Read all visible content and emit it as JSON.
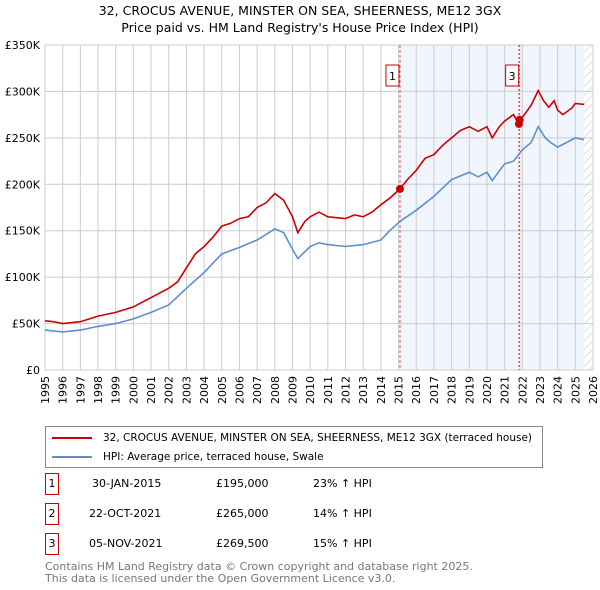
{
  "chart_data": {
    "type": "line",
    "title": "32, CROCUS AVENUE, MINSTER ON SEA, SHEERNESS, ME12 3GX",
    "subtitle": "Price paid vs. HM Land Registry's House Price Index (HPI)",
    "xlim": [
      1995,
      2026
    ],
    "ylim": [
      0,
      350000
    ],
    "x_ticks": [
      "1995",
      "1996",
      "1997",
      "1998",
      "1999",
      "2000",
      "2001",
      "2002",
      "2003",
      "2004",
      "2005",
      "2006",
      "2007",
      "2008",
      "2009",
      "2010",
      "2011",
      "2012",
      "2013",
      "2014",
      "2015",
      "2016",
      "2017",
      "2018",
      "2019",
      "2020",
      "2021",
      "2022",
      "2023",
      "2024",
      "2025",
      "2026"
    ],
    "y_ticks": [
      {
        "v": 0,
        "label": "£0"
      },
      {
        "v": 50000,
        "label": "£50K"
      },
      {
        "v": 100000,
        "label": "£100K"
      },
      {
        "v": 150000,
        "label": "£150K"
      },
      {
        "v": 200000,
        "label": "£200K"
      },
      {
        "v": 250000,
        "label": "£250K"
      },
      {
        "v": 300000,
        "label": "£300K"
      },
      {
        "v": 350000,
        "label": "£350K"
      }
    ],
    "grid": true,
    "shaded_from": 2015.08,
    "hatched_from": 2025.5,
    "series": [
      {
        "name": "32, CROCUS AVENUE, MINSTER ON SEA, SHEERNESS, ME12 3GX (terraced house)",
        "color": "#cc0000",
        "x": [
          1995,
          1995.5,
          1996,
          1997,
          1998,
          1999,
          2000,
          2000.5,
          2001,
          2002,
          2002.5,
          2003,
          2003.5,
          2004,
          2004.5,
          2005,
          2005.5,
          2006,
          2006.5,
          2007,
          2007.5,
          2008,
          2008.5,
          2009,
          2009.3,
          2009.7,
          2010,
          2010.5,
          2011,
          2012,
          2012.5,
          2013,
          2013.5,
          2014,
          2014.5,
          2015.08,
          2015.5,
          2016,
          2016.5,
          2017,
          2017.5,
          2018,
          2018.5,
          2019,
          2019.5,
          2020,
          2020.3,
          2020.7,
          2021,
          2021.5,
          2021.8,
          2022,
          2022.5,
          2022.9,
          2023.2,
          2023.5,
          2023.8,
          2024,
          2024.3,
          2024.8,
          2025,
          2025.5
        ],
        "y": [
          53000,
          52000,
          50000,
          52000,
          58000,
          62000,
          68000,
          73000,
          78000,
          88000,
          95000,
          110000,
          125000,
          133000,
          143000,
          155000,
          158000,
          163000,
          165000,
          175000,
          180000,
          190000,
          183000,
          165000,
          148000,
          160000,
          165000,
          170000,
          165000,
          163000,
          167000,
          165000,
          170000,
          178000,
          185000,
          195000,
          205000,
          215000,
          228000,
          232000,
          242000,
          250000,
          258000,
          262000,
          257000,
          262000,
          250000,
          262000,
          268000,
          275000,
          265000,
          272000,
          285000,
          301000,
          290000,
          283000,
          290000,
          280000,
          275000,
          282000,
          287000,
          286000
        ]
      },
      {
        "name": "HPI: Average price, terraced house, Swale",
        "color": "#5b8fd0",
        "x": [
          1995,
          1996,
          1997,
          1998,
          1999,
          2000,
          2001,
          2002,
          2003,
          2004,
          2004.5,
          2005,
          2006,
          2007,
          2008,
          2008.5,
          2009,
          2009.3,
          2010,
          2010.5,
          2011,
          2012,
          2013,
          2014,
          2014.5,
          2015.08,
          2016,
          2017,
          2018,
          2019,
          2019.5,
          2020,
          2020.3,
          2021,
          2021.5,
          2022,
          2022.5,
          2022.9,
          2023.3,
          2023.6,
          2024,
          2024.5,
          2025,
          2025.5
        ],
        "y": [
          43000,
          41000,
          43000,
          47000,
          50000,
          55000,
          62000,
          70000,
          88000,
          105000,
          115000,
          125000,
          132000,
          140000,
          152000,
          148000,
          130000,
          120000,
          133000,
          137000,
          135000,
          133000,
          135000,
          140000,
          150000,
          160000,
          172000,
          187000,
          205000,
          213000,
          208000,
          213000,
          204000,
          222000,
          225000,
          237000,
          245000,
          262000,
          250000,
          245000,
          240000,
          245000,
          250000,
          248000
        ]
      }
    ],
    "sales": [
      {
        "id": "1",
        "x": 2015.08,
        "price": 195000,
        "date": "30-JAN-2015",
        "price_label": "£195,000",
        "hpi": "23% ↑ HPI",
        "show_label": true
      },
      {
        "id": "2",
        "x": 2021.81,
        "price": 265000,
        "date": "22-OCT-2021",
        "price_label": "£265,000",
        "hpi": "14% ↑ HPI",
        "show_label": false
      },
      {
        "id": "3",
        "x": 2021.85,
        "price": 269500,
        "date": "05-NOV-2021",
        "price_label": "£269,500",
        "hpi": "15% ↑ HPI",
        "show_label": true
      }
    ]
  },
  "footer": {
    "line1": "Contains HM Land Registry data © Crown copyright and database right 2025.",
    "line2": "This data is licensed under the Open Government Licence v3.0."
  }
}
